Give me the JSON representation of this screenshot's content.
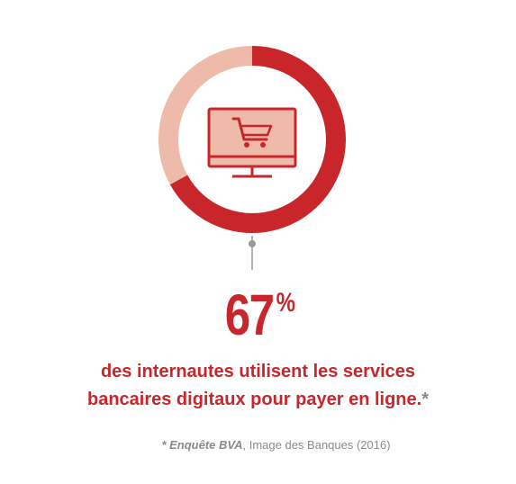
{
  "chart_data": {
    "type": "pie",
    "values": [
      67,
      33
    ],
    "highlight_value_label": "67",
    "percent_sign": "%",
    "title": "",
    "xlabel": "",
    "ylabel": ""
  },
  "caption": {
    "line1": "des internautes utilisent les services",
    "line2": "bancaires digitaux pour payer en ligne.",
    "asterisk": "*"
  },
  "source": {
    "emphasis": "* Enquête BVA",
    "rest": ", Image des Banques (2016)"
  },
  "colors": {
    "accent": "#c8262a",
    "ring_remainder": "#eebbaa",
    "screen_fill": "#eebbaa",
    "connector": "#999999",
    "source_text": "#8a8a8a"
  },
  "icons": {
    "center": "monitor-shopping-cart-icon"
  }
}
